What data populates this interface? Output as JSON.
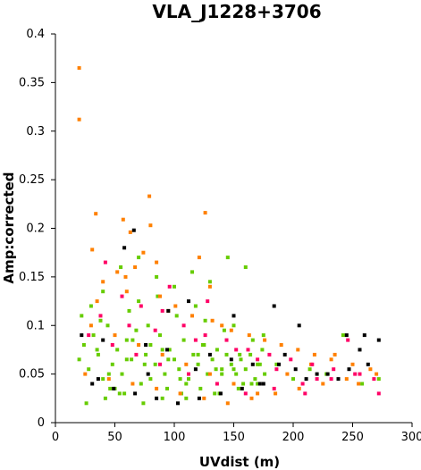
{
  "chart_data": {
    "type": "scatter",
    "title": "VLA_J1228+3706",
    "xlabel": "UVdist (m)",
    "ylabel": "Amp:corrected",
    "xlim": [
      0,
      300
    ],
    "ylim": [
      0,
      0.4
    ],
    "xticks": [
      0,
      50,
      100,
      150,
      200,
      250,
      300
    ],
    "yticks": [
      0,
      0.05,
      0.1,
      0.15,
      0.2,
      0.25,
      0.3,
      0.35,
      0.4
    ],
    "ytick_labels": [
      "0",
      "0.05",
      "0.1",
      "0.15",
      "0.2",
      "0.25",
      "0.3",
      "0.35",
      "0.4"
    ],
    "grid": false,
    "legend": "none",
    "colors": [
      "#000000",
      "#ff0066",
      "#66cc00",
      "#ff8000"
    ],
    "series": [
      {
        "color": "#66cc00",
        "x": [
          20,
          24,
          28,
          32,
          36,
          40,
          44,
          48,
          52,
          56,
          60,
          64,
          68,
          72,
          76,
          80,
          84,
          88,
          92,
          96,
          100,
          104,
          108,
          112,
          116,
          120,
          124,
          128,
          132,
          136,
          140,
          144,
          148,
          152,
          156,
          160,
          164,
          168,
          172,
          176,
          22,
          30,
          38,
          46,
          54,
          62,
          70,
          78,
          86,
          94,
          102,
          110,
          118,
          126,
          134,
          142,
          150,
          158,
          166,
          174,
          26,
          42,
          58,
          74,
          90,
          106,
          122,
          138,
          154,
          170,
          186,
          200,
          214,
          228,
          242,
          258,
          272,
          40,
          55,
          70,
          85,
          100,
          115,
          130,
          145,
          160,
          175,
          35,
          65,
          95,
          125,
          155,
          45,
          75,
          105,
          135,
          165,
          50,
          80,
          110,
          140,
          170,
          60,
          90,
          120,
          150
        ],
        "y": [
          0.065,
          0.08,
          0.055,
          0.09,
          0.07,
          0.045,
          0.1,
          0.06,
          0.075,
          0.05,
          0.085,
          0.065,
          0.095,
          0.04,
          0.07,
          0.08,
          0.06,
          0.09,
          0.05,
          0.075,
          0.065,
          0.055,
          0.085,
          0.045,
          0.07,
          0.06,
          0.08,
          0.05,
          0.065,
          0.075,
          0.055,
          0.07,
          0.06,
          0.05,
          0.065,
          0.055,
          0.07,
          0.045,
          0.06,
          0.05,
          0.11,
          0.12,
          0.105,
          0.035,
          0.03,
          0.115,
          0.125,
          0.1,
          0.13,
          0.035,
          0.11,
          0.025,
          0.12,
          0.105,
          0.03,
          0.095,
          0.1,
          0.04,
          0.085,
          0.075,
          0.02,
          0.025,
          0.03,
          0.02,
          0.025,
          0.03,
          0.035,
          0.03,
          0.035,
          0.04,
          0.06,
          0.045,
          0.055,
          0.05,
          0.09,
          0.04,
          0.045,
          0.135,
          0.16,
          0.17,
          0.15,
          0.14,
          0.155,
          0.145,
          0.17,
          0.16,
          0.09,
          0.075,
          0.085,
          0.065,
          0.08,
          0.07,
          0.05,
          0.06,
          0.045,
          0.055,
          0.04,
          0.035,
          0.045,
          0.04,
          0.05,
          0.06,
          0.065,
          0.075,
          0.07,
          0.055
        ]
      },
      {
        "color": "#ff8000",
        "x": [
          20,
          20,
          34,
          31,
          57,
          63,
          79,
          80,
          74,
          85,
          126,
          121,
          59,
          130,
          40,
          52,
          67,
          88,
          101,
          115,
          132,
          148,
          163,
          176,
          190,
          204,
          218,
          232,
          250,
          265,
          25,
          45,
          65,
          85,
          105,
          125,
          145,
          165,
          185,
          205,
          225,
          245,
          270,
          30,
          50,
          70,
          90,
          110,
          130,
          150,
          170,
          195,
          215,
          235,
          255,
          35,
          60,
          95,
          140
        ],
        "y": [
          0.365,
          0.312,
          0.215,
          0.178,
          0.209,
          0.196,
          0.233,
          0.203,
          0.175,
          0.165,
          0.216,
          0.17,
          0.15,
          0.14,
          0.145,
          0.155,
          0.16,
          0.13,
          0.12,
          0.11,
          0.105,
          0.095,
          0.09,
          0.085,
          0.08,
          0.075,
          0.07,
          0.065,
          0.06,
          0.055,
          0.05,
          0.045,
          0.04,
          0.035,
          0.03,
          0.025,
          0.02,
          0.025,
          0.03,
          0.035,
          0.04,
          0.045,
          0.05,
          0.1,
          0.09,
          0.08,
          0.07,
          0.06,
          0.05,
          0.04,
          0.03,
          0.05,
          0.06,
          0.07,
          0.04,
          0.125,
          0.135,
          0.115,
          0.1
        ]
      },
      {
        "color": "#ff0066",
        "x": [
          42,
          56,
          72,
          90,
          108,
          126,
          144,
          162,
          180,
          198,
          216,
          234,
          252,
          268,
          28,
          48,
          68,
          88,
          112,
          136,
          160,
          184,
          208,
          232,
          256,
          38,
          62,
          84,
          118,
          152,
          186,
          220,
          96,
          128,
          170,
          210,
          246,
          272
        ],
        "y": [
          0.165,
          0.13,
          0.12,
          0.115,
          0.1,
          0.09,
          0.085,
          0.075,
          0.07,
          0.065,
          0.06,
          0.055,
          0.05,
          0.045,
          0.09,
          0.08,
          0.07,
          0.06,
          0.05,
          0.04,
          0.03,
          0.035,
          0.04,
          0.045,
          0.05,
          0.11,
          0.1,
          0.095,
          0.085,
          0.075,
          0.055,
          0.045,
          0.14,
          0.125,
          0.065,
          0.03,
          0.085,
          0.03
        ]
      },
      {
        "color": "#000000",
        "x": [
          22,
          40,
          58,
          76,
          94,
          112,
          130,
          148,
          166,
          184,
          202,
          220,
          238,
          256,
          272,
          31,
          49,
          67,
          85,
          103,
          121,
          139,
          157,
          175,
          193,
          211,
          229,
          247,
          263,
          66,
          188,
          245,
          95,
          150,
          205,
          260,
          36,
          78,
          118,
          172
        ],
        "y": [
          0.09,
          0.085,
          0.18,
          0.08,
          0.075,
          0.125,
          0.07,
          0.065,
          0.06,
          0.12,
          0.055,
          0.05,
          0.045,
          0.075,
          0.085,
          0.04,
          0.035,
          0.03,
          0.025,
          0.02,
          0.025,
          0.03,
          0.035,
          0.04,
          0.07,
          0.045,
          0.05,
          0.055,
          0.06,
          0.198,
          0.06,
          0.09,
          0.115,
          0.11,
          0.1,
          0.09,
          0.045,
          0.05,
          0.055,
          0.04
        ]
      }
    ]
  }
}
